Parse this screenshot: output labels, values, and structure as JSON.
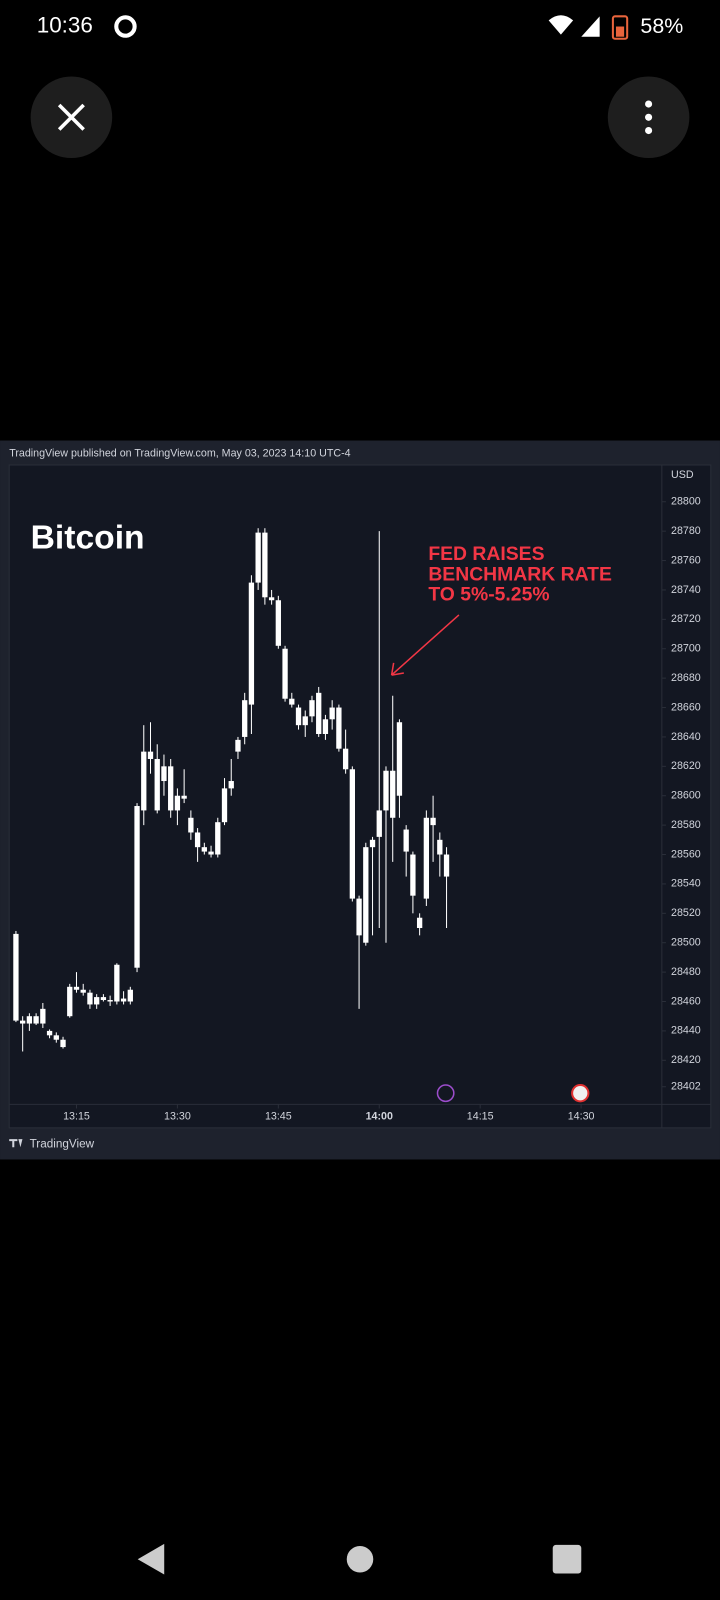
{
  "status_bar": {
    "time": "10:36",
    "battery": "58%"
  },
  "header": {
    "published": "TradingView published on TradingView.com, May 03, 2023 14:10 UTC-4"
  },
  "footer": {
    "brand": "TradingView"
  },
  "chart_data": {
    "type": "candlestick",
    "title": "Bitcoin",
    "y_unit": "USD",
    "annotation": [
      "FED RAISES",
      "BENCHMARK RATE",
      "TO 5%-5.25%"
    ],
    "color": "#ffffff",
    "x": [
      "13:06",
      "13:07",
      "13:08",
      "13:09",
      "13:10",
      "13:11",
      "13:12",
      "13:13",
      "13:14",
      "13:15",
      "13:16",
      "13:17",
      "13:18",
      "13:19",
      "13:20",
      "13:21",
      "13:22",
      "13:23",
      "13:24",
      "13:25",
      "13:26",
      "13:27",
      "13:28",
      "13:29",
      "13:30",
      "13:31",
      "13:32",
      "13:33",
      "13:34",
      "13:35",
      "13:36",
      "13:37",
      "13:38",
      "13:39",
      "13:40",
      "13:41",
      "13:42",
      "13:43",
      "13:44",
      "13:45",
      "13:46",
      "13:47",
      "13:48",
      "13:49",
      "13:50",
      "13:51",
      "13:52",
      "13:53",
      "13:54",
      "13:55",
      "13:56",
      "13:57",
      "13:58",
      "13:59",
      "14:00",
      "14:01",
      "14:02",
      "14:03",
      "14:04",
      "14:05",
      "14:06",
      "14:07",
      "14:08",
      "14:09",
      "14:10"
    ],
    "open": [
      28506,
      28447,
      28445,
      28450,
      28445,
      28440,
      28437,
      28434,
      28450,
      28470,
      28468,
      28466,
      28458,
      28463,
      28461,
      28460,
      28462,
      28460,
      28483,
      28590,
      28630,
      28625,
      28610,
      28620,
      28590,
      28600,
      28585,
      28575,
      28565,
      28562,
      28560,
      28582,
      28605,
      28630,
      28640,
      28662,
      28745,
      28779,
      28735,
      28733,
      28700,
      28666,
      28660,
      28648,
      28654,
      28670,
      28642,
      28652,
      28660,
      28632,
      28618,
      28530,
      28500,
      28565,
      28572,
      28590,
      28617,
      28600,
      28577,
      28560,
      28517,
      28530,
      28585,
      28570,
      28560
    ],
    "high": [
      28508,
      28450,
      28452,
      28452,
      28459,
      28441,
      28439,
      28436,
      28472,
      28480,
      28472,
      28468,
      28465,
      28465,
      28464,
      28486,
      28467,
      28470,
      28595,
      28648,
      28650,
      28635,
      28628,
      28625,
      28605,
      28618,
      28590,
      28578,
      28568,
      28566,
      28585,
      28612,
      28625,
      28640,
      28670,
      28750,
      28782,
      28782,
      28740,
      28736,
      28702,
      28670,
      28662,
      28658,
      28668,
      28674,
      28655,
      28665,
      28662,
      28645,
      28620,
      28532,
      28568,
      28572,
      28780,
      28620,
      28668,
      28652,
      28580,
      28562,
      28520,
      28590,
      28600,
      28575,
      28565
    ],
    "low": [
      28446,
      28426,
      28440,
      28444,
      28442,
      28435,
      28432,
      28428,
      28449,
      28466,
      28464,
      28455,
      28455,
      28460,
      28457,
      28458,
      28458,
      28458,
      28480,
      28580,
      28615,
      28588,
      28600,
      28585,
      28580,
      28595,
      28570,
      28555,
      28560,
      28558,
      28558,
      28580,
      28600,
      28625,
      28635,
      28642,
      28740,
      28730,
      28730,
      28700,
      28664,
      28660,
      28645,
      28640,
      28650,
      28640,
      28638,
      28645,
      28630,
      28615,
      28528,
      28455,
      28498,
      28505,
      28510,
      28500,
      28555,
      28585,
      28545,
      28520,
      28505,
      28525,
      28555,
      28545,
      28510
    ],
    "close": [
      28447,
      28445,
      28450,
      28445,
      28455,
      28437,
      28434,
      28429,
      28470,
      28468,
      28466,
      28458,
      28463,
      28461,
      28460,
      28485,
      28460,
      28468,
      28593,
      28630,
      28625,
      28590,
      28620,
      28590,
      28600,
      28598,
      28575,
      28565,
      28562,
      28560,
      28582,
      28605,
      28610,
      28638,
      28665,
      28745,
      28779,
      28735,
      28733,
      28702,
      28666,
      28662,
      28648,
      28654,
      28665,
      28642,
      28652,
      28660,
      28632,
      28618,
      28530,
      28505,
      28565,
      28570,
      28590,
      28617,
      28585,
      28650,
      28562,
      28532,
      28510,
      28585,
      28580,
      28560,
      28545
    ],
    "xlim": [
      "13:05",
      "14:42"
    ],
    "xticks": [
      "13:15",
      "13:30",
      "13:45",
      "14:00",
      "14:15",
      "14:30"
    ],
    "ylim": [
      28390,
      28825
    ],
    "yticks": [
      28402,
      28420,
      28440,
      28460,
      28480,
      28500,
      28520,
      28540,
      28560,
      28580,
      28600,
      28620,
      28640,
      28660,
      28680,
      28700,
      28720,
      28740,
      28760,
      28780,
      28800
    ]
  }
}
